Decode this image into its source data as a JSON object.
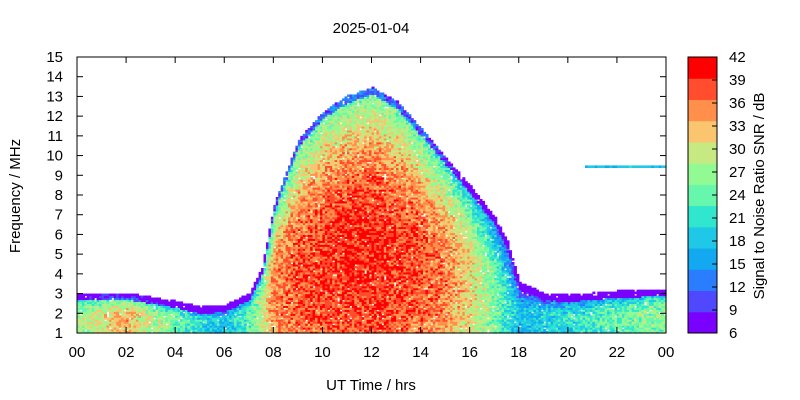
{
  "chart_data": {
    "type": "heatmap",
    "title": "2025-01-04",
    "xlabel": "UT Time / hrs",
    "ylabel": "Frequency / MHz",
    "colorbar_label": "Signal to Noise Ratio SNR / dB",
    "xlim": [
      0,
      24
    ],
    "ylim": [
      1,
      15
    ],
    "x_ticks": [
      "00",
      "02",
      "04",
      "06",
      "08",
      "10",
      "12",
      "14",
      "16",
      "18",
      "20",
      "22",
      "00"
    ],
    "y_ticks": [
      "1",
      "2",
      "3",
      "4",
      "5",
      "6",
      "7",
      "8",
      "9",
      "10",
      "11",
      "12",
      "13",
      "14",
      "15"
    ],
    "colorbar_ticks": [
      "6",
      "9",
      "12",
      "15",
      "18",
      "21",
      "24",
      "27",
      "30",
      "33",
      "36",
      "39",
      "42"
    ],
    "colorbar_range": [
      6,
      42
    ],
    "colorbar_colors": [
      "#7a00ff",
      "#5048ff",
      "#2a7dff",
      "#12a9f0",
      "#1fc8e6",
      "#31e6cf",
      "#66f7ad",
      "#92fa93",
      "#c6ea81",
      "#fbc570",
      "#ff8f4a",
      "#ff4d2d",
      "#ff0000"
    ],
    "grid": false,
    "legend": "colorbar-right",
    "signal_envelope": {
      "hours": [
        0,
        2,
        4,
        5,
        6,
        7,
        7.5,
        8,
        9,
        10,
        11,
        12,
        13,
        14,
        15,
        16,
        17,
        17.5,
        18,
        19,
        20,
        22,
        24
      ],
      "top_mhz": [
        3.0,
        3.0,
        2.6,
        2.3,
        2.4,
        3.0,
        4.3,
        7.5,
        10.8,
        12.2,
        13.0,
        13.4,
        12.7,
        11.3,
        9.8,
        8.4,
        6.8,
        5.6,
        3.5,
        3.0,
        2.9,
        3.1,
        3.2
      ],
      "peak_snr_db": [
        30,
        36,
        27,
        23,
        21,
        26,
        32,
        38,
        40,
        41,
        42,
        42,
        41,
        40,
        38,
        34,
        28,
        24,
        20,
        22,
        23,
        27,
        30
      ]
    }
  }
}
